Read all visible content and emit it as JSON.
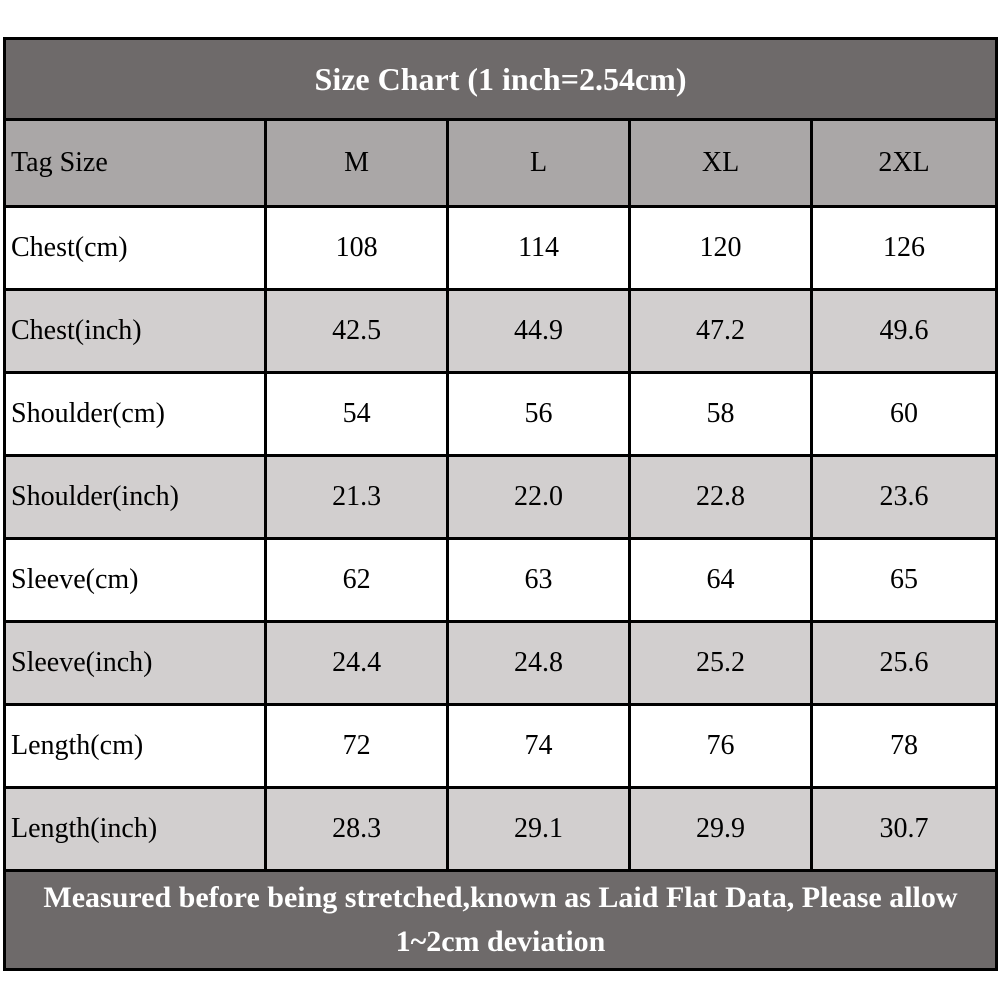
{
  "chart_data": {
    "type": "table",
    "title": "Size Chart (1 inch=2.54cm)",
    "header": {
      "label": "Tag Size",
      "sizes": [
        "M",
        "L",
        "XL",
        "2XL"
      ]
    },
    "rows": [
      {
        "label": "Chest(cm)",
        "values": [
          "108",
          "114",
          "120",
          "126"
        ]
      },
      {
        "label": "Chest(inch)",
        "values": [
          "42.5",
          "44.9",
          "47.2",
          "49.6"
        ]
      },
      {
        "label": "Shoulder(cm)",
        "values": [
          "54",
          "56",
          "58",
          "60"
        ]
      },
      {
        "label": "Shoulder(inch)",
        "values": [
          "21.3",
          "22.0",
          "22.8",
          "23.6"
        ]
      },
      {
        "label": "Sleeve(cm)",
        "values": [
          "62",
          "63",
          "64",
          "65"
        ]
      },
      {
        "label": "Sleeve(inch)",
        "values": [
          "24.4",
          "24.8",
          "25.2",
          "25.6"
        ]
      },
      {
        "label": "Length(cm)",
        "values": [
          "72",
          "74",
          "76",
          "78"
        ]
      },
      {
        "label": "Length(inch)",
        "values": [
          "28.3",
          "29.1",
          "29.9",
          "30.7"
        ]
      }
    ],
    "footnote": "Measured before being stretched,known as Laid Flat Data, Please allow 1~2cm deviation"
  },
  "colors": {
    "band_bg": "#6e6a6a",
    "header_row_bg": "#aaa7a7",
    "alt_row_bg": "#d2cfcf",
    "row_bg": "#ffffff",
    "border": "#000000",
    "band_text": "#ffffff",
    "cell_text": "#000000"
  }
}
